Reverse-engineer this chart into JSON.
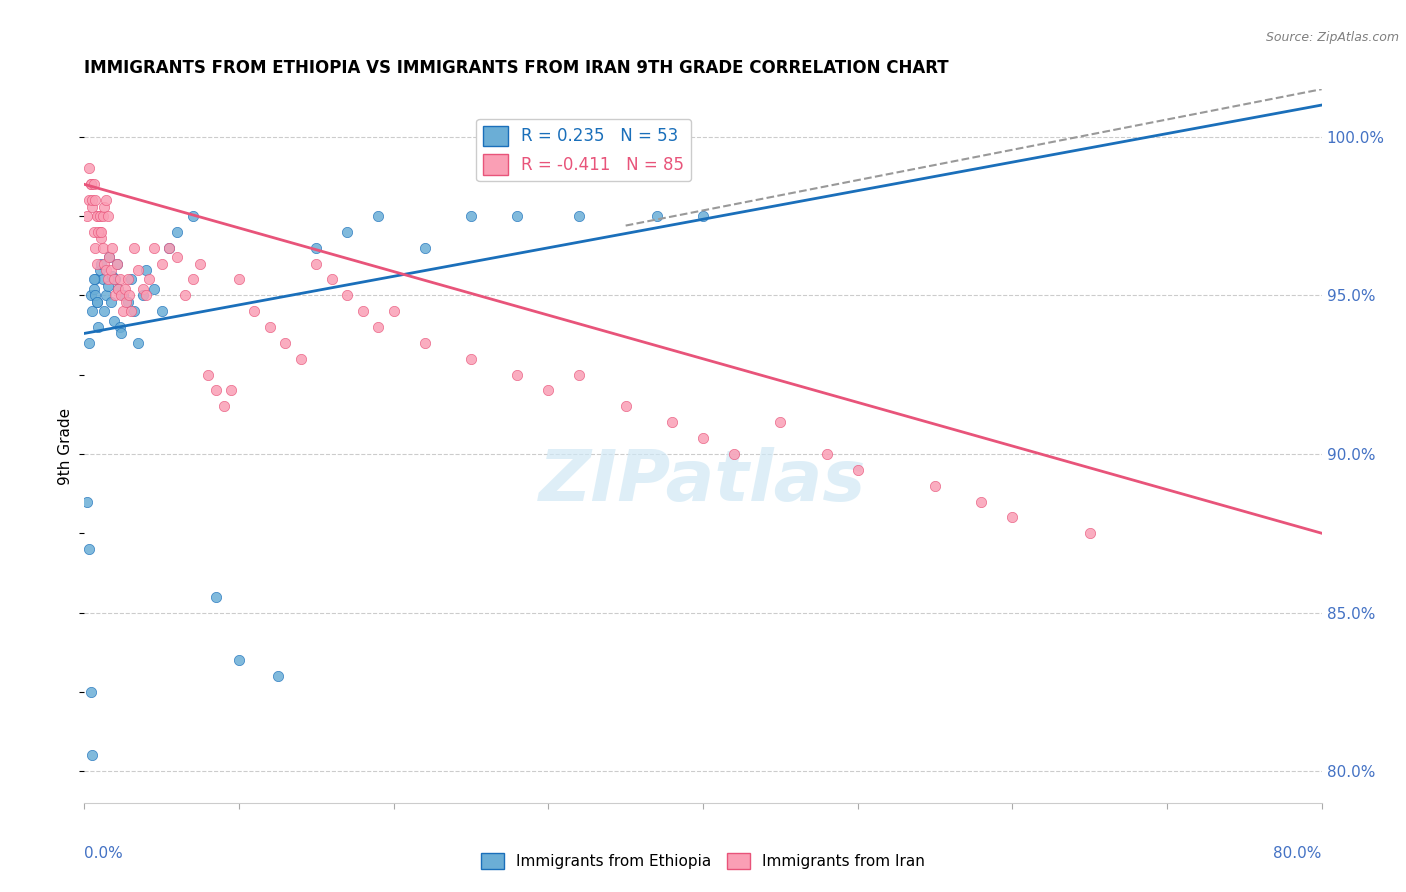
{
  "title": "IMMIGRANTS FROM ETHIOPIA VS IMMIGRANTS FROM IRAN 9TH GRADE CORRELATION CHART",
  "source": "Source: ZipAtlas.com",
  "ylabel": "9th Grade",
  "ylabel_ticks": [
    80.0,
    85.0,
    90.0,
    95.0,
    100.0
  ],
  "xlim": [
    0.0,
    80.0
  ],
  "ylim": [
    79.0,
    101.5
  ],
  "R_ethiopia": 0.235,
  "N_ethiopia": 53,
  "R_iran": -0.411,
  "N_iran": 85,
  "color_ethiopia": "#6baed6",
  "color_iran": "#fa9fb5",
  "color_trendline_ethiopia": "#1a6fba",
  "color_trendline_iran": "#e8547a",
  "color_dashed": "#999999",
  "ethiopia_x": [
    0.3,
    0.4,
    0.5,
    0.6,
    0.7,
    0.8,
    0.9,
    1.0,
    1.1,
    1.2,
    1.3,
    1.4,
    1.5,
    1.6,
    1.7,
    1.8,
    1.9,
    2.0,
    2.1,
    2.2,
    2.3,
    2.4,
    2.5,
    2.8,
    3.0,
    3.2,
    3.5,
    3.8,
    4.0,
    4.5,
    5.0,
    5.5,
    6.0,
    7.0,
    8.5,
    10.0,
    12.5,
    15.0,
    17.0,
    19.0,
    22.0,
    25.0,
    28.0,
    32.0,
    37.0,
    40.0,
    0.2,
    0.3,
    0.4,
    0.5,
    0.6,
    0.7,
    0.8
  ],
  "ethiopia_y": [
    93.5,
    95.0,
    94.5,
    95.2,
    95.5,
    94.8,
    94.0,
    95.8,
    96.0,
    95.5,
    94.5,
    95.0,
    95.3,
    96.2,
    94.8,
    95.6,
    94.2,
    95.5,
    96.0,
    95.2,
    94.0,
    93.8,
    95.0,
    94.8,
    95.5,
    94.5,
    93.5,
    95.0,
    95.8,
    95.2,
    94.5,
    96.5,
    97.0,
    97.5,
    85.5,
    83.5,
    83.0,
    96.5,
    97.0,
    97.5,
    96.5,
    97.5,
    97.5,
    97.5,
    97.5,
    97.5,
    88.5,
    87.0,
    82.5,
    80.5,
    95.5,
    95.0,
    94.8
  ],
  "iran_x": [
    0.2,
    0.3,
    0.4,
    0.5,
    0.6,
    0.7,
    0.8,
    0.9,
    1.0,
    1.1,
    1.2,
    1.3,
    1.4,
    1.5,
    1.6,
    1.7,
    1.8,
    1.9,
    2.0,
    2.1,
    2.2,
    2.3,
    2.4,
    2.5,
    2.6,
    2.7,
    2.8,
    2.9,
    3.0,
    3.2,
    3.5,
    3.8,
    4.0,
    4.2,
    4.5,
    5.0,
    5.5,
    6.0,
    6.5,
    7.0,
    7.5,
    8.0,
    8.5,
    9.0,
    9.5,
    10.0,
    11.0,
    12.0,
    13.0,
    14.0,
    15.0,
    16.0,
    17.0,
    18.0,
    19.0,
    20.0,
    22.0,
    25.0,
    28.0,
    30.0,
    32.0,
    35.0,
    38.0,
    40.0,
    42.0,
    45.0,
    48.0,
    50.0,
    55.0,
    58.0,
    60.0,
    65.0,
    0.3,
    0.4,
    0.5,
    0.6,
    0.7,
    0.8,
    0.9,
    1.0,
    1.1,
    1.2,
    1.3,
    1.4,
    1.5
  ],
  "iran_y": [
    97.5,
    98.0,
    98.5,
    97.8,
    97.0,
    96.5,
    96.0,
    97.5,
    97.0,
    96.8,
    96.5,
    96.0,
    95.8,
    95.5,
    96.2,
    95.8,
    96.5,
    95.5,
    95.0,
    96.0,
    95.2,
    95.5,
    95.0,
    94.5,
    95.2,
    94.8,
    95.5,
    95.0,
    94.5,
    96.5,
    95.8,
    95.2,
    95.0,
    95.5,
    96.5,
    96.0,
    96.5,
    96.2,
    95.0,
    95.5,
    96.0,
    92.5,
    92.0,
    91.5,
    92.0,
    95.5,
    94.5,
    94.0,
    93.5,
    93.0,
    96.0,
    95.5,
    95.0,
    94.5,
    94.0,
    94.5,
    93.5,
    93.0,
    92.5,
    92.0,
    92.5,
    91.5,
    91.0,
    90.5,
    90.0,
    91.0,
    90.0,
    89.5,
    89.0,
    88.5,
    88.0,
    87.5,
    99.0,
    98.5,
    98.0,
    98.5,
    98.0,
    97.5,
    97.0,
    97.5,
    97.0,
    97.5,
    97.8,
    98.0,
    97.5
  ],
  "watermark": "ZIPatlas",
  "trendline_ethiopia_x0": 0.0,
  "trendline_ethiopia_y0": 93.8,
  "trendline_ethiopia_x1": 80.0,
  "trendline_ethiopia_y1": 101.0,
  "trendline_iran_x0": 0.0,
  "trendline_iran_y0": 98.5,
  "trendline_iran_x1": 80.0,
  "trendline_iran_y1": 87.5,
  "dashed_x0": 35.0,
  "dashed_y0": 97.2,
  "dashed_x1": 80.0,
  "dashed_y1": 101.5
}
